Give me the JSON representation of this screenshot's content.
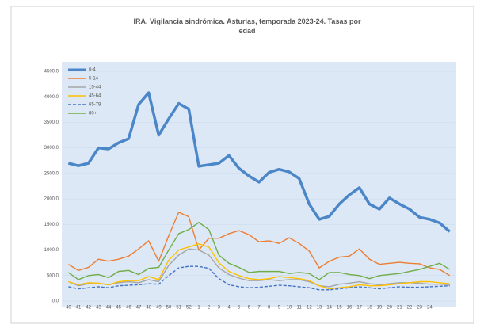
{
  "chart_data": {
    "type": "line",
    "title": "IRA. Vigilancia sindrómica. Asturias, temporada 2023-24. Tasas por edad",
    "categories": [
      "40",
      "41",
      "42",
      "43",
      "44",
      "45",
      "46",
      "47",
      "48",
      "49",
      "50",
      "51",
      "52",
      "1",
      "2",
      "3",
      "4",
      "5",
      "6",
      "7",
      "8",
      "9",
      "10",
      "11",
      "12",
      "13",
      "14",
      "15",
      "16",
      "17",
      "18",
      "19",
      "20",
      "21",
      "22",
      "23",
      "24",
      null,
      null
    ],
    "series": [
      {
        "name": "0-4",
        "color": "#4a86c8",
        "values": [
          2700,
          2650,
          2700,
          3000,
          2980,
          3100,
          3180,
          3850,
          4080,
          3250,
          3570,
          3870,
          3760,
          2640,
          2670,
          2700,
          2850,
          2600,
          2450,
          2330,
          2520,
          2580,
          2530,
          2400,
          1900,
          1600,
          1660,
          1900,
          2080,
          2220,
          1900,
          1800,
          2020,
          1900,
          1800,
          1640,
          1600,
          1530,
          1360
        ]
      },
      {
        "name": "5-14",
        "color": "#ed7d31",
        "values": [
          720,
          600,
          660,
          820,
          780,
          820,
          880,
          1020,
          1180,
          780,
          1280,
          1740,
          1650,
          1000,
          1230,
          1230,
          1320,
          1380,
          1300,
          1160,
          1180,
          1130,
          1240,
          1130,
          980,
          650,
          780,
          860,
          880,
          1020,
          820,
          720,
          740,
          760,
          740,
          730,
          650,
          620,
          500
        ]
      },
      {
        "name": "15-44",
        "color": "#a5a5a5",
        "values": [
          380,
          300,
          340,
          350,
          320,
          360,
          380,
          360,
          420,
          380,
          700,
          900,
          1020,
          1000,
          900,
          650,
          520,
          450,
          400,
          400,
          420,
          400,
          420,
          420,
          380,
          300,
          280,
          330,
          350,
          380,
          340,
          320,
          340,
          360,
          360,
          350,
          330,
          330,
          320
        ]
      },
      {
        "name": "45-64",
        "color": "#ffc000",
        "values": [
          380,
          320,
          360,
          350,
          320,
          380,
          400,
          400,
          480,
          420,
          800,
          1000,
          1060,
          1120,
          1060,
          750,
          580,
          500,
          440,
          420,
          440,
          480,
          460,
          440,
          400,
          300,
          240,
          260,
          280,
          320,
          300,
          300,
          320,
          340,
          360,
          380,
          380,
          360,
          340
        ]
      },
      {
        "name": "65-79",
        "color": "#4472c4",
        "dashed": true,
        "values": [
          280,
          240,
          260,
          280,
          260,
          300,
          310,
          320,
          340,
          330,
          500,
          650,
          680,
          680,
          640,
          440,
          320,
          280,
          260,
          270,
          290,
          310,
          300,
          280,
          260,
          220,
          220,
          240,
          260,
          280,
          260,
          240,
          260,
          280,
          270,
          270,
          280,
          290,
          300
        ]
      },
      {
        "name": "80+",
        "color": "#70ad47",
        "values": [
          560,
          420,
          500,
          520,
          460,
          580,
          600,
          520,
          640,
          660,
          1000,
          1320,
          1400,
          1540,
          1400,
          900,
          740,
          660,
          560,
          580,
          580,
          580,
          540,
          560,
          540,
          420,
          560,
          560,
          520,
          500,
          440,
          500,
          520,
          540,
          580,
          620,
          680,
          740,
          620
        ]
      }
    ],
    "ylim": [
      0,
      4500
    ],
    "yticks": [
      {
        "value": 0,
        "label": "0,0"
      },
      {
        "value": 500,
        "label": "500,0"
      },
      {
        "value": 1000,
        "label": "1000,0"
      },
      {
        "value": 1500,
        "label": "1500,0"
      },
      {
        "value": 2000,
        "label": "2000,0"
      },
      {
        "value": 2500,
        "label": "2500,0"
      },
      {
        "value": 3000,
        "label": "3000,0"
      },
      {
        "value": 3500,
        "label": "3500,0"
      },
      {
        "value": 4000,
        "label": "4000,0"
      },
      {
        "value": 4500,
        "label": "4500,0"
      }
    ],
    "grid": true,
    "legend": "top-left"
  }
}
